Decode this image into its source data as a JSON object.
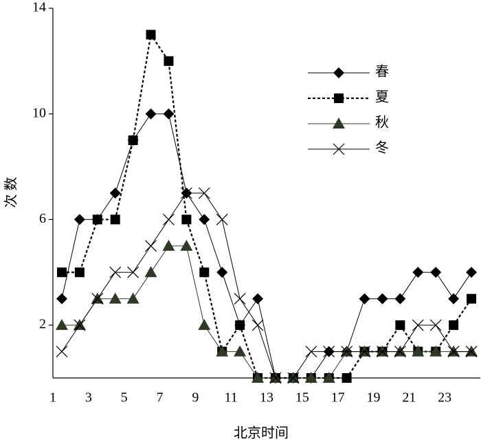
{
  "chart_data": {
    "type": "line",
    "x_label": "北京时间",
    "y_label": "次 数",
    "categories": [
      "1",
      null,
      "3",
      null,
      "5",
      null,
      "7",
      null,
      "9",
      null,
      "11",
      null,
      "13",
      null,
      "15",
      null,
      "17",
      null,
      "19",
      null,
      "21",
      null,
      "23",
      null
    ],
    "series": [
      {
        "name": "春",
        "color": "#000000",
        "marker": "diamond",
        "dash": false,
        "values": [
          3,
          6,
          6,
          7,
          9,
          10,
          10,
          7,
          6,
          4,
          2,
          3,
          0,
          0,
          0,
          1,
          1,
          3,
          3,
          3,
          4,
          4,
          3,
          4
        ]
      },
      {
        "name": "夏",
        "color": "#000000",
        "marker": "square",
        "dash": true,
        "values": [
          4,
          4,
          6,
          6,
          9,
          13,
          12,
          6,
          4,
          1,
          2,
          0,
          0,
          0,
          0,
          0,
          0,
          1,
          1,
          2,
          1,
          1,
          2,
          3
        ]
      },
      {
        "name": "秋",
        "color": "#2f3a26",
        "marker": "triangle",
        "dash": false,
        "values": [
          2,
          2,
          3,
          3,
          3,
          4,
          5,
          5,
          2,
          1,
          1,
          0,
          0,
          0,
          0,
          0,
          1,
          1,
          1,
          1,
          1,
          1,
          1,
          1
        ]
      },
      {
        "name": "冬",
        "color": "#000000",
        "marker": "cross",
        "dash": false,
        "values": [
          1,
          2,
          3,
          4,
          4,
          5,
          6,
          7,
          7,
          6,
          3,
          2,
          0,
          0,
          1,
          1,
          1,
          1,
          1,
          1,
          2,
          2,
          1,
          1
        ]
      }
    ],
    "ylim": [
      0,
      14
    ],
    "yticks": [
      2,
      6,
      10,
      14
    ],
    "grid": false,
    "legend": "upper right"
  }
}
